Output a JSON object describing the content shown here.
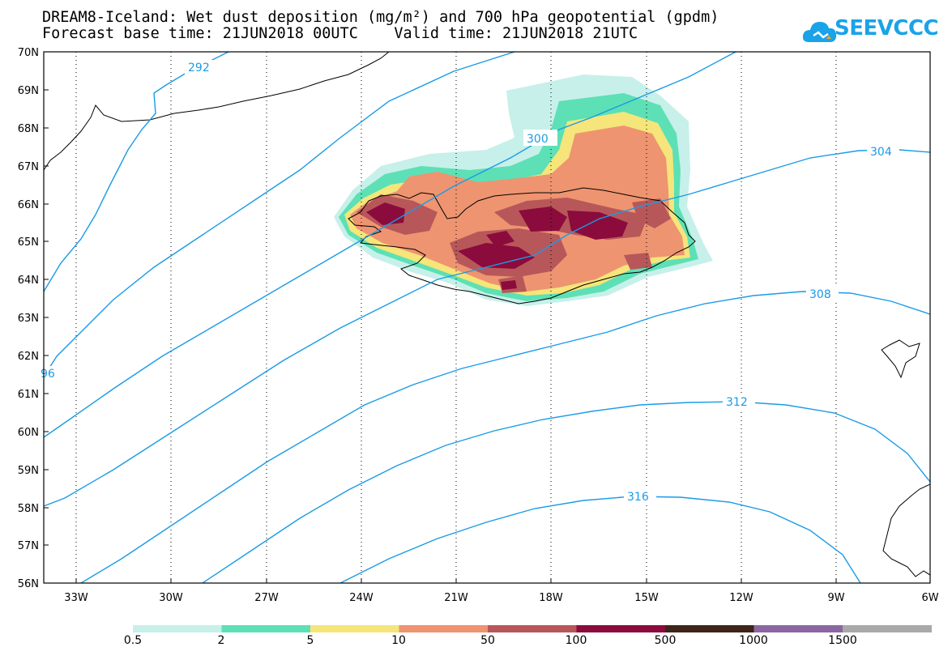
{
  "title": {
    "line1": "DREAM8-Iceland: Wet dust deposition (mg/m²) and 700 hPa geopotential (gpdm)",
    "line2": "Forecast base time: 21JUN2018 00UTC    Valid time: 21JUN2018 21UTC"
  },
  "logo": {
    "text": "SEEVCCC",
    "icon": "cloud-icon",
    "color": "#1aa3e8"
  },
  "axes": {
    "lat_labels": [
      "70N",
      "69N",
      "68N",
      "67N",
      "66N",
      "65N",
      "64N",
      "63N",
      "62N",
      "61N",
      "60N",
      "59N",
      "58N",
      "57N",
      "56N"
    ],
    "lon_labels": [
      "33W",
      "30W",
      "27W",
      "24W",
      "21W",
      "18W",
      "15W",
      "12W",
      "9W",
      "6W"
    ]
  },
  "contours": {
    "color": "#1a9be6",
    "labels": [
      "292",
      "96",
      "300",
      "304",
      "308",
      "312",
      "316"
    ]
  },
  "legend": {
    "colors": [
      "#c7f0ea",
      "#5de0b5",
      "#f5e57a",
      "#ee9470",
      "#b8575a",
      "#8b0b3c",
      "#3f2418",
      "#8b67a2",
      "#a9a9a9"
    ],
    "labels": [
      "0.5",
      "2",
      "5",
      "10",
      "50",
      "100",
      "500",
      "1000",
      "1500"
    ]
  }
}
